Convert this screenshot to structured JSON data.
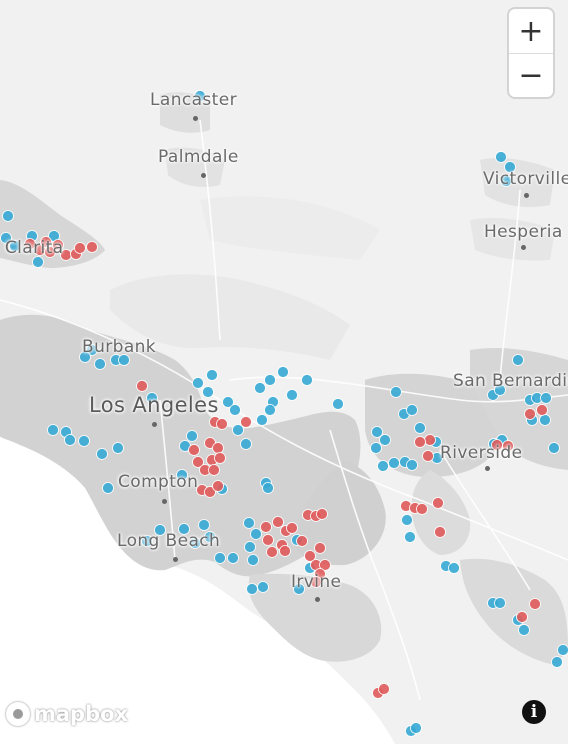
{
  "cities": [
    {
      "id": "lancaster",
      "name": "Lancaster",
      "size": "small"
    },
    {
      "id": "palmdale",
      "name": "Palmdale",
      "size": "small"
    },
    {
      "id": "victorville",
      "name": "Victorville",
      "size": "small"
    },
    {
      "id": "hesperia",
      "name": "Hesperia",
      "size": "small"
    },
    {
      "id": "santa-clarita",
      "name": "Santa Clarita",
      "size": "small"
    },
    {
      "id": "burbank",
      "name": "Burbank",
      "size": "small"
    },
    {
      "id": "los-angeles",
      "name": "Los Angeles",
      "size": "big"
    },
    {
      "id": "san-bernardino",
      "name": "San Bernardino",
      "size": "small"
    },
    {
      "id": "riverside",
      "name": "Riverside",
      "size": "small"
    },
    {
      "id": "compton",
      "name": "Compton",
      "size": "small"
    },
    {
      "id": "long-beach",
      "name": "Long Beach",
      "size": "small"
    },
    {
      "id": "irvine",
      "name": "Irvine",
      "size": "small"
    }
  ],
  "controls": {
    "zoom_in": "+",
    "zoom_out": "−",
    "attribution_icon": "i",
    "zoom_in_icon": "plus-icon",
    "zoom_out_icon": "minus-icon",
    "attribution_icon_name": "info-icon"
  },
  "branding": {
    "logo_text": "mapbox",
    "logo_icon": "mapbox-logo-icon"
  },
  "legend_colors": {
    "red_series": "#e05a5a",
    "blue_series": "#36a9d4"
  }
}
